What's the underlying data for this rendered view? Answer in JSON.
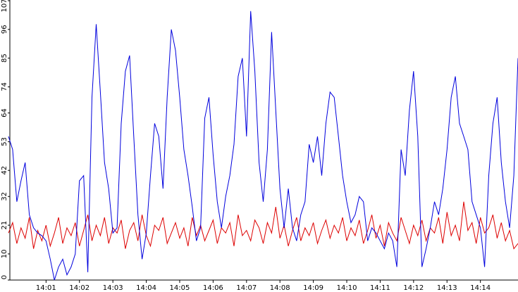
{
  "chart_data": {
    "type": "line",
    "categories": [
      null,
      null,
      null,
      null,
      null,
      null,
      null,
      null,
      null,
      "14:01",
      null,
      null,
      null,
      null,
      null,
      null,
      null,
      "14:02",
      null,
      null,
      null,
      null,
      null,
      null,
      null,
      "14:03",
      null,
      null,
      null,
      null,
      null,
      null,
      null,
      "14:04",
      null,
      null,
      null,
      null,
      null,
      null,
      null,
      "14:05",
      null,
      null,
      null,
      null,
      null,
      null,
      null,
      "14:06",
      null,
      null,
      null,
      null,
      null,
      null,
      null,
      "14:07",
      null,
      null,
      null,
      null,
      null,
      null,
      null,
      "14:08",
      null,
      null,
      null,
      null,
      null,
      null,
      null,
      "14:09",
      null,
      null,
      null,
      null,
      null,
      null,
      null,
      "14:10",
      null,
      null,
      null,
      null,
      null,
      null,
      null,
      "14:11",
      null,
      null,
      null,
      null,
      null,
      null,
      null,
      "14:12",
      null,
      null,
      null,
      null,
      null,
      null,
      null,
      "14:13",
      null,
      null,
      null,
      null,
      null,
      null,
      null,
      "14:14",
      null,
      null,
      null,
      null,
      null,
      null,
      null,
      null,
      null
    ],
    "series": [
      {
        "color": "#0000dd",
        "values": [
          55,
          50,
          30,
          38,
          45,
          25,
          20,
          18,
          17,
          15,
          8,
          0,
          5,
          8,
          2,
          5,
          10,
          38,
          40,
          3,
          70,
          98,
          72,
          45,
          35,
          18,
          20,
          60,
          80,
          86,
          55,
          25,
          8,
          18,
          40,
          60,
          55,
          35,
          70,
          96,
          88,
          70,
          50,
          40,
          28,
          15,
          20,
          62,
          70,
          48,
          30,
          20,
          32,
          40,
          52,
          78,
          85,
          55,
          103,
          80,
          45,
          30,
          50,
          95,
          65,
          35,
          20,
          35,
          20,
          15,
          25,
          30,
          52,
          45,
          55,
          40,
          60,
          72,
          70,
          55,
          40,
          30,
          22,
          25,
          32,
          30,
          15,
          20,
          18,
          15,
          12,
          18,
          15,
          5,
          50,
          40,
          65,
          80,
          55,
          5,
          12,
          20,
          30,
          25,
          35,
          50,
          70,
          78,
          60,
          55,
          50,
          30,
          25,
          20,
          5,
          40,
          60,
          70,
          45,
          30,
          20,
          40,
          85
        ]
      },
      {
        "color": "#dd0000",
        "values": [
          18,
          22,
          14,
          20,
          16,
          24,
          12,
          19,
          15,
          21,
          13,
          18,
          24,
          14,
          20,
          17,
          22,
          13,
          19,
          25,
          15,
          21,
          17,
          24,
          14,
          20,
          18,
          23,
          12,
          19,
          22,
          15,
          25,
          17,
          13,
          21,
          19,
          24,
          14,
          18,
          22,
          16,
          20,
          13,
          24,
          17,
          21,
          15,
          19,
          23,
          14,
          20,
          18,
          22,
          13,
          25,
          17,
          19,
          15,
          23,
          20,
          14,
          22,
          18,
          28,
          16,
          21,
          13,
          19,
          24,
          15,
          20,
          17,
          22,
          14,
          19,
          23,
          16,
          21,
          18,
          24,
          15,
          20,
          17,
          23,
          14,
          19,
          25,
          16,
          21,
          13,
          22,
          18,
          15,
          24,
          19,
          14,
          21,
          17,
          23,
          15,
          20,
          18,
          24,
          14,
          26,
          17,
          21,
          15,
          30,
          19,
          22,
          14,
          24,
          18,
          20,
          25,
          16,
          22,
          15,
          19,
          12,
          14
        ]
      }
    ],
    "ylim": [
      0,
      107
    ],
    "yticks": [
      0,
      10,
      21,
      32,
      42,
      53,
      64,
      74,
      85,
      96,
      107
    ]
  }
}
